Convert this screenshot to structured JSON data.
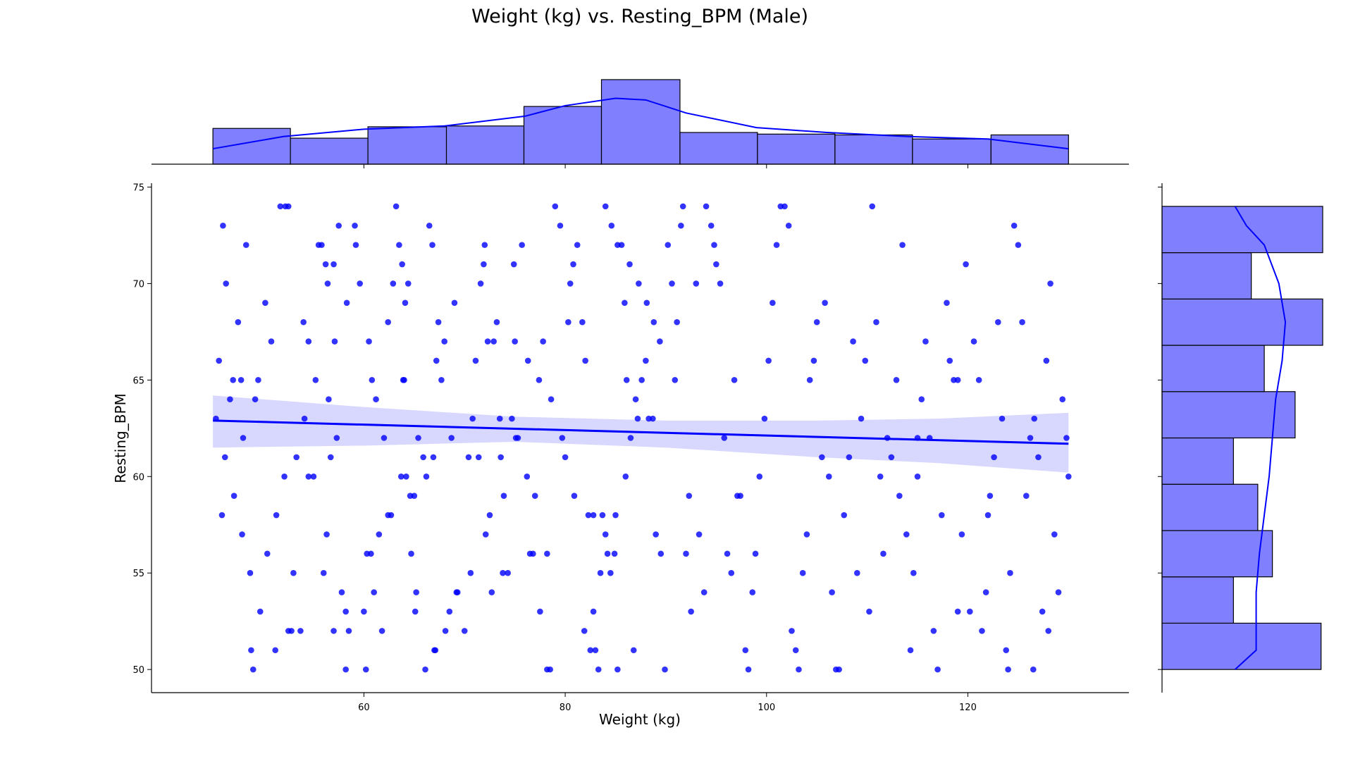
{
  "chart_data": {
    "type": "scatter",
    "title": "Weight (kg) vs. Resting_BPM (Male)",
    "xlabel": "Weight (kg)",
    "ylabel": "Resting_BPM",
    "xlim": [
      38.9,
      136.0
    ],
    "ylim": [
      48.8,
      75.2
    ],
    "xticks": [
      60,
      80,
      100,
      120
    ],
    "yticks": [
      50,
      55,
      60,
      65,
      70,
      75
    ],
    "grid": false,
    "legend": "none",
    "colors": {
      "points": "#0000ff",
      "line": "#0000ff",
      "band": "#d8d8ff",
      "hist_fill": "#8080ff",
      "hist_edge": "#000000"
    },
    "regression": {
      "line": [
        [
          45,
          62.9
        ],
        [
          130,
          61.7
        ]
      ],
      "ci_upper": [
        [
          45,
          64.2
        ],
        [
          60,
          63.6
        ],
        [
          75,
          63.1
        ],
        [
          90,
          62.9
        ],
        [
          105,
          62.9
        ],
        [
          117,
          63.0
        ],
        [
          130,
          63.3
        ]
      ],
      "ci_lower": [
        [
          45,
          61.5
        ],
        [
          60,
          61.6
        ],
        [
          75,
          61.8
        ],
        [
          90,
          61.5
        ],
        [
          105,
          61.0
        ],
        [
          117,
          60.7
        ],
        [
          130,
          60.2
        ]
      ]
    },
    "x_hist": {
      "bins": [
        45.0,
        52.7,
        60.4,
        68.2,
        75.9,
        83.6,
        91.4,
        99.1,
        106.8,
        114.5,
        122.3,
        130.0
      ],
      "counts": [
        44,
        32,
        46,
        47,
        71,
        104,
        39,
        37,
        36,
        31,
        36
      ],
      "kde": [
        [
          45,
          19
        ],
        [
          52,
          34
        ],
        [
          60,
          43
        ],
        [
          68,
          47
        ],
        [
          76,
          59
        ],
        [
          80,
          72
        ],
        [
          85,
          81
        ],
        [
          88,
          79
        ],
        [
          92,
          63
        ],
        [
          99,
          45
        ],
        [
          106,
          39
        ],
        [
          114,
          34
        ],
        [
          122,
          31
        ],
        [
          130,
          19
        ]
      ]
    },
    "y_hist": {
      "bins": [
        50.0,
        52.4,
        54.8,
        57.2,
        59.6,
        62.0,
        64.4,
        66.8,
        69.2,
        71.6,
        74.0
      ],
      "counts": [
        98,
        44,
        68,
        59,
        44,
        82,
        63,
        99,
        55,
        99
      ],
      "kde": [
        [
          50,
          45
        ],
        [
          51,
          58
        ],
        [
          52,
          58
        ],
        [
          54,
          58
        ],
        [
          56,
          60
        ],
        [
          58,
          63
        ],
        [
          60,
          66
        ],
        [
          62,
          68
        ],
        [
          64,
          70
        ],
        [
          66,
          74
        ],
        [
          68,
          76
        ],
        [
          70,
          72
        ],
        [
          72,
          63
        ],
        [
          73,
          52
        ],
        [
          74,
          45
        ]
      ]
    },
    "points": [
      [
        46,
        73
      ],
      [
        46.3,
        70
      ],
      [
        46.7,
        64
      ],
      [
        47,
        65
      ],
      [
        47.5,
        68
      ],
      [
        47.8,
        65
      ],
      [
        48.3,
        72
      ],
      [
        48.7,
        55
      ],
      [
        49.2,
        64
      ],
      [
        49,
        50
      ],
      [
        48,
        62
      ],
      [
        49.5,
        65
      ],
      [
        50.2,
        69
      ],
      [
        50.8,
        67
      ],
      [
        51.2,
        51
      ],
      [
        51.7,
        74
      ],
      [
        52.2,
        74
      ],
      [
        52.5,
        74
      ],
      [
        52.8,
        52
      ],
      [
        53,
        55
      ],
      [
        52.5,
        52
      ],
      [
        54,
        68
      ],
      [
        54.5,
        67
      ],
      [
        55,
        60
      ],
      [
        55.5,
        72
      ],
      [
        55.8,
        72
      ],
      [
        56.2,
        71
      ],
      [
        56.4,
        70
      ],
      [
        56.5,
        64
      ],
      [
        56.7,
        61
      ],
      [
        56,
        55
      ],
      [
        56.3,
        57
      ],
      [
        57,
        71
      ],
      [
        57.5,
        73
      ],
      [
        57.3,
        62
      ],
      [
        57.8,
        54
      ],
      [
        58.2,
        53
      ],
      [
        58.5,
        52
      ],
      [
        58.2,
        50
      ],
      [
        57,
        52
      ],
      [
        54.5,
        60
      ],
      [
        53.7,
        52
      ],
      [
        59.2,
        72
      ],
      [
        59.6,
        70
      ],
      [
        60.5,
        67
      ],
      [
        61,
        54
      ],
      [
        61.2,
        64
      ],
      [
        60.8,
        65
      ],
      [
        61.5,
        57
      ],
      [
        60,
        53
      ],
      [
        60.7,
        56
      ],
      [
        60.3,
        56
      ],
      [
        62,
        62
      ],
      [
        62.4,
        68
      ],
      [
        62.7,
        58
      ],
      [
        62.9,
        70
      ],
      [
        63.2,
        74
      ],
      [
        63.5,
        72
      ],
      [
        63.8,
        71
      ],
      [
        64.1,
        69
      ],
      [
        64.4,
        70
      ],
      [
        64,
        65
      ],
      [
        63.7,
        60
      ],
      [
        63.9,
        65
      ],
      [
        64.2,
        60
      ],
      [
        64.6,
        59
      ],
      [
        65,
        59
      ],
      [
        65.1,
        53
      ],
      [
        65.4,
        62
      ],
      [
        65.9,
        61
      ],
      [
        66.2,
        60
      ],
      [
        66.5,
        73
      ],
      [
        66.8,
        72
      ],
      [
        67.2,
        66
      ],
      [
        67,
        51
      ],
      [
        66.9,
        61
      ],
      [
        67.4,
        68
      ],
      [
        67.7,
        65
      ],
      [
        68,
        67
      ],
      [
        68.5,
        53
      ],
      [
        68.7,
        62
      ],
      [
        69,
        69
      ],
      [
        69.3,
        54
      ],
      [
        70,
        52
      ],
      [
        70.4,
        61
      ],
      [
        70.8,
        63
      ],
      [
        71.1,
        66
      ],
      [
        71.4,
        61
      ],
      [
        71.6,
        70
      ],
      [
        71.9,
        71
      ],
      [
        72,
        72
      ],
      [
        72.3,
        67
      ],
      [
        72.5,
        58
      ],
      [
        72.7,
        54
      ],
      [
        72.9,
        67
      ],
      [
        73.2,
        68
      ],
      [
        73.5,
        63
      ],
      [
        73.6,
        61
      ],
      [
        73.8,
        55
      ],
      [
        74.3,
        55
      ],
      [
        74.7,
        63
      ],
      [
        75,
        67
      ],
      [
        74.9,
        71
      ],
      [
        75.3,
        62
      ],
      [
        75.7,
        72
      ],
      [
        76.2,
        60
      ],
      [
        76.5,
        56
      ],
      [
        76.8,
        56
      ],
      [
        77,
        59
      ],
      [
        77.5,
        53
      ],
      [
        77.8,
        67
      ],
      [
        78.2,
        50
      ],
      [
        78.5,
        50
      ],
      [
        78.2,
        56
      ],
      [
        79,
        74
      ],
      [
        79.5,
        73
      ],
      [
        80,
        61
      ],
      [
        80.3,
        68
      ],
      [
        80.5,
        70
      ],
      [
        80.8,
        71
      ],
      [
        81.2,
        72
      ],
      [
        81.7,
        68
      ],
      [
        82,
        66
      ],
      [
        82.3,
        58
      ],
      [
        82.8,
        58
      ],
      [
        83,
        51
      ],
      [
        82.5,
        51
      ],
      [
        83.3,
        50
      ],
      [
        83.7,
        58
      ],
      [
        84,
        57
      ],
      [
        84.5,
        55
      ],
      [
        84.9,
        56
      ],
      [
        85.2,
        50
      ],
      [
        85.6,
        72
      ],
      [
        85.9,
        69
      ],
      [
        86.1,
        65
      ],
      [
        86.5,
        62
      ],
      [
        86.8,
        51
      ],
      [
        87,
        64
      ],
      [
        87.2,
        63
      ],
      [
        87.6,
        65
      ],
      [
        88,
        66
      ],
      [
        88.3,
        63
      ],
      [
        88.7,
        63
      ],
      [
        89,
        57
      ],
      [
        89.5,
        56
      ],
      [
        89.9,
        50
      ],
      [
        90.2,
        72
      ],
      [
        90.6,
        70
      ],
      [
        90.9,
        65
      ],
      [
        91.1,
        68
      ],
      [
        91.5,
        73
      ],
      [
        91.7,
        74
      ],
      [
        92,
        56
      ],
      [
        92.3,
        59
      ],
      [
        92.5,
        53
      ],
      [
        93,
        70
      ],
      [
        93.3,
        57
      ],
      [
        93.8,
        54
      ],
      [
        94,
        74
      ],
      [
        94.5,
        73
      ],
      [
        94.8,
        72
      ],
      [
        95,
        71
      ],
      [
        95.4,
        70
      ],
      [
        95.8,
        62
      ],
      [
        96.1,
        56
      ],
      [
        96.5,
        55
      ],
      [
        96.8,
        65
      ],
      [
        97.1,
        59
      ],
      [
        97.4,
        59
      ],
      [
        97.9,
        51
      ],
      [
        98.2,
        50
      ],
      [
        98.6,
        54
      ],
      [
        98.9,
        56
      ],
      [
        99.3,
        60
      ],
      [
        99.8,
        63
      ],
      [
        100.2,
        66
      ],
      [
        100.6,
        69
      ],
      [
        101,
        72
      ],
      [
        101.4,
        74
      ],
      [
        101.8,
        74
      ],
      [
        102.2,
        73
      ],
      [
        102.5,
        52
      ],
      [
        102.9,
        51
      ],
      [
        103.2,
        50
      ],
      [
        103.6,
        55
      ],
      [
        104,
        57
      ],
      [
        104.3,
        65
      ],
      [
        104.7,
        66
      ],
      [
        105,
        68
      ],
      [
        105.5,
        61
      ],
      [
        105.8,
        69
      ],
      [
        106.2,
        60
      ],
      [
        106.5,
        54
      ],
      [
        106.9,
        50
      ],
      [
        107.2,
        50
      ],
      [
        107.7,
        58
      ],
      [
        108.2,
        61
      ],
      [
        108.6,
        67
      ],
      [
        109,
        55
      ],
      [
        109.4,
        63
      ],
      [
        109.8,
        66
      ],
      [
        110.2,
        53
      ],
      [
        110.5,
        74
      ],
      [
        110.9,
        68
      ],
      [
        111.3,
        60
      ],
      [
        111.6,
        56
      ],
      [
        112,
        62
      ],
      [
        112.4,
        61
      ],
      [
        112.9,
        65
      ],
      [
        113.2,
        59
      ],
      [
        113.5,
        72
      ],
      [
        113.9,
        57
      ],
      [
        114.3,
        51
      ],
      [
        114.6,
        55
      ],
      [
        115,
        60
      ],
      [
        115.4,
        64
      ],
      [
        115.8,
        67
      ],
      [
        116.2,
        62
      ],
      [
        116.6,
        52
      ],
      [
        117,
        50
      ],
      [
        117.4,
        58
      ],
      [
        117.9,
        69
      ],
      [
        118.2,
        66
      ],
      [
        118.6,
        65
      ],
      [
        119,
        53
      ],
      [
        119.4,
        57
      ],
      [
        119.8,
        71
      ],
      [
        120.2,
        53
      ],
      [
        120.6,
        67
      ],
      [
        121.1,
        65
      ],
      [
        121.4,
        52
      ],
      [
        121.8,
        54
      ],
      [
        122.2,
        59
      ],
      [
        122.6,
        61
      ],
      [
        123,
        68
      ],
      [
        123.4,
        63
      ],
      [
        123.8,
        51
      ],
      [
        124.2,
        55
      ],
      [
        124.6,
        73
      ],
      [
        125,
        72
      ],
      [
        125.4,
        68
      ],
      [
        125.8,
        59
      ],
      [
        126.2,
        62
      ],
      [
        126.6,
        63
      ],
      [
        127,
        61
      ],
      [
        127.4,
        53
      ],
      [
        127.8,
        66
      ],
      [
        128.2,
        70
      ],
      [
        128.6,
        57
      ],
      [
        129,
        54
      ],
      [
        129.4,
        64
      ],
      [
        129.8,
        62
      ],
      [
        130,
        60
      ],
      [
        128,
        52
      ],
      [
        126.5,
        50
      ],
      [
        124,
        50
      ],
      [
        122,
        58
      ],
      [
        119,
        65
      ],
      [
        115,
        62
      ],
      [
        84,
        74
      ],
      [
        84.6,
        73
      ],
      [
        85.2,
        72
      ],
      [
        86.4,
        71
      ],
      [
        87.3,
        70
      ],
      [
        88.1,
        69
      ],
      [
        88.8,
        68
      ],
      [
        89.4,
        67
      ],
      [
        86,
        60
      ],
      [
        85,
        58
      ],
      [
        84.2,
        56
      ],
      [
        83.5,
        55
      ],
      [
        82.8,
        53
      ],
      [
        81.9,
        52
      ],
      [
        80.9,
        59
      ],
      [
        79.7,
        62
      ],
      [
        78.6,
        64
      ],
      [
        77.4,
        65
      ],
      [
        76.3,
        66
      ],
      [
        75.1,
        62
      ],
      [
        73.9,
        59
      ],
      [
        72.1,
        57
      ],
      [
        70.6,
        55
      ],
      [
        69.2,
        54
      ],
      [
        68.1,
        52
      ],
      [
        67.1,
        51
      ],
      [
        66.1,
        50
      ],
      [
        65.2,
        54
      ],
      [
        64.7,
        56
      ],
      [
        62.4,
        58
      ],
      [
        61.8,
        52
      ],
      [
        60.2,
        50
      ],
      [
        59.1,
        73
      ],
      [
        58.3,
        69
      ],
      [
        57.1,
        67
      ],
      [
        55.2,
        65
      ],
      [
        54.1,
        63
      ],
      [
        53.3,
        61
      ],
      [
        52.1,
        60
      ],
      [
        51.3,
        58
      ],
      [
        50.4,
        56
      ],
      [
        49.7,
        53
      ],
      [
        48.8,
        51
      ],
      [
        47.9,
        57
      ],
      [
        47.1,
        59
      ],
      [
        46.2,
        61
      ],
      [
        45.3,
        63
      ],
      [
        45.6,
        66
      ],
      [
        45.9,
        58
      ]
    ]
  }
}
